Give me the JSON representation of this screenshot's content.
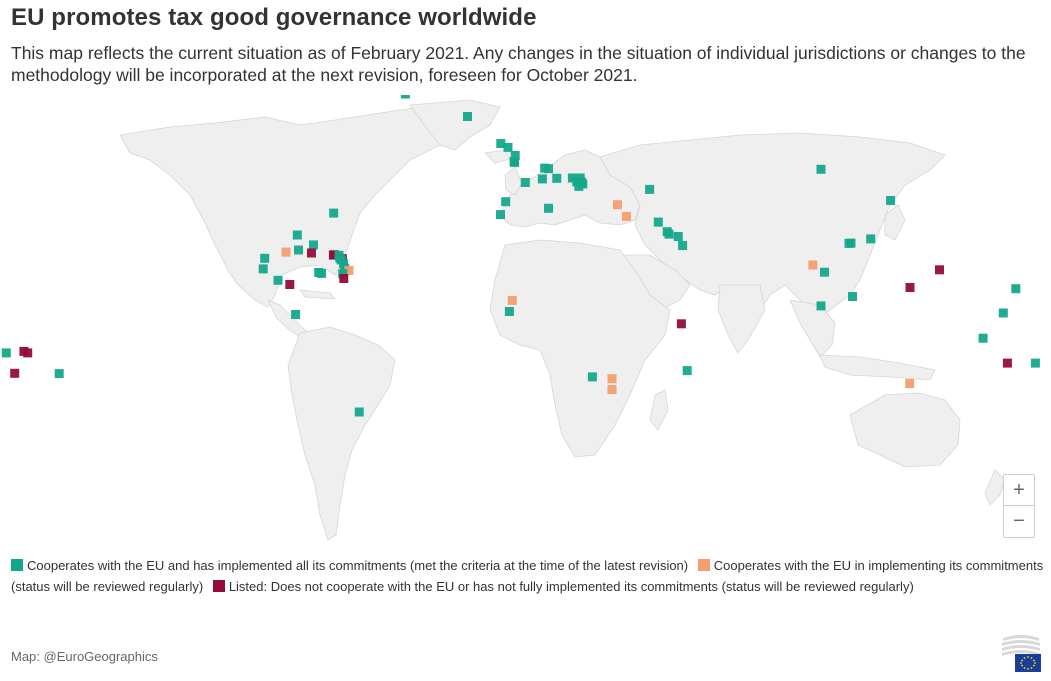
{
  "title": "EU promotes tax good governance worldwide",
  "subtitle": "This map reflects the current situation as of February 2021. Any changes in the situation of individual jurisdictions or changes to the methodology will be incorporated at the next revision, foreseen for October 2021.",
  "colors": {
    "cooperates_implemented": "#14a88a",
    "cooperates_implementing": "#f59d6e",
    "listed": "#970b3a",
    "land": "#efefef",
    "border": "#c9c9c9"
  },
  "legend": {
    "cooperates_implemented": "Cooperates with the EU and has implemented all its commitments (met the criteria at the time of the latest revision)",
    "cooperates_implementing": "Cooperates with the EU in implementing its commitments (status will be reviewed regularly)",
    "listed": "Listed: Does not cooperate with the EU or has not fully implemented its commitments (status will be reviewed regularly)"
  },
  "zoom": {
    "in": "+",
    "out": "−"
  },
  "source": "Map: @EuroGeographics",
  "markers": [
    {
      "lat": 72.0,
      "lon": -40.0,
      "status": "cooperates_implemented"
    },
    {
      "lat": 64.5,
      "lon": -18.5,
      "status": "cooperates_implemented"
    },
    {
      "lat": 55.5,
      "lon": -7.0,
      "status": "cooperates_implemented"
    },
    {
      "lat": 51.5,
      "lon": -2.0,
      "status": "cooperates_implemented"
    },
    {
      "lat": 49.5,
      "lon": -2.4,
      "status": "cooperates_implemented"
    },
    {
      "lat": 49.2,
      "lon": -2.2,
      "status": "cooperates_implemented"
    },
    {
      "lat": 54.2,
      "lon": -4.5,
      "status": "cooperates_implemented"
    },
    {
      "lat": 47.1,
      "lon": 9.5,
      "status": "cooperates_implemented"
    },
    {
      "lat": 47.3,
      "lon": 8.2,
      "status": "cooperates_implemented"
    },
    {
      "lat": 43.7,
      "lon": 7.4,
      "status": "cooperates_implemented"
    },
    {
      "lat": 42.5,
      "lon": 1.5,
      "status": "cooperates_implemented"
    },
    {
      "lat": 43.9,
      "lon": 12.4,
      "status": "cooperates_implemented"
    },
    {
      "lat": 44.0,
      "lon": 17.8,
      "status": "cooperates_implemented"
    },
    {
      "lat": 42.7,
      "lon": 19.3,
      "status": "cooperates_implemented"
    },
    {
      "lat": 42.0,
      "lon": 21.4,
      "status": "cooperates_implemented"
    },
    {
      "lat": 41.2,
      "lon": 20.0,
      "status": "cooperates_implemented"
    },
    {
      "lat": 44.0,
      "lon": 20.5,
      "status": "cooperates_implemented"
    },
    {
      "lat": 42.6,
      "lon": 20.9,
      "status": "cooperates_implemented"
    },
    {
      "lat": 40.2,
      "lon": 44.5,
      "status": "cooperates_implemented"
    },
    {
      "lat": 46.9,
      "lon": 103.8,
      "status": "cooperates_implemented"
    },
    {
      "lat": 36.1,
      "lon": -5.3,
      "status": "cooperates_implemented"
    },
    {
      "lat": 33.9,
      "lon": 9.5,
      "status": "cooperates_implemented"
    },
    {
      "lat": 31.8,
      "lon": -7.1,
      "status": "cooperates_implemented"
    },
    {
      "lat": 35.1,
      "lon": 33.4,
      "status": "cooperates_implementing"
    },
    {
      "lat": 31.2,
      "lon": 36.5,
      "status": "cooperates_implementing"
    },
    {
      "lat": 26.1,
      "lon": 50.6,
      "status": "cooperates_implemented"
    },
    {
      "lat": 25.3,
      "lon": 51.2,
      "status": "cooperates_implemented"
    },
    {
      "lat": 24.5,
      "lon": 54.4,
      "status": "cooperates_implemented"
    },
    {
      "lat": 21.5,
      "lon": 55.9,
      "status": "cooperates_implemented"
    },
    {
      "lat": 29.3,
      "lon": 47.5,
      "status": "cooperates_implemented"
    },
    {
      "lat": 36.5,
      "lon": 127.9,
      "status": "cooperates_implemented"
    },
    {
      "lat": 23.7,
      "lon": 121.0,
      "status": "cooperates_implemented"
    },
    {
      "lat": 22.3,
      "lon": 114.2,
      "status": "cooperates_implemented"
    },
    {
      "lat": 22.2,
      "lon": 113.5,
      "status": "cooperates_implemented"
    },
    {
      "lat": 15.0,
      "lon": 101.0,
      "status": "cooperates_implementing"
    },
    {
      "lat": 12.6,
      "lon": 105.0,
      "status": "cooperates_implemented"
    },
    {
      "lat": 4.5,
      "lon": 114.7,
      "status": "cooperates_implemented"
    },
    {
      "lat": 1.35,
      "lon": 103.8,
      "status": "cooperates_implemented"
    },
    {
      "lat": 3.2,
      "lon": -3.0,
      "status": "cooperates_implementing"
    },
    {
      "lat": -4.6,
      "lon": 55.5,
      "status": "listed"
    },
    {
      "lat": -20.2,
      "lon": 57.5,
      "status": "cooperates_implemented"
    },
    {
      "lat": -22.3,
      "lon": 24.7,
      "status": "cooperates_implemented"
    },
    {
      "lat": -22.9,
      "lon": 31.5,
      "status": "cooperates_implementing"
    },
    {
      "lat": -26.5,
      "lon": 31.5,
      "status": "cooperates_implementing"
    },
    {
      "lat": -24.5,
      "lon": 134.5,
      "status": "cooperates_implementing"
    },
    {
      "lat": 7.5,
      "lon": 134.6,
      "status": "listed"
    },
    {
      "lat": 13.4,
      "lon": 144.8,
      "status": "listed"
    },
    {
      "lat": 7.1,
      "lon": 171.2,
      "status": "cooperates_implemented"
    },
    {
      "lat": -1.0,
      "lon": 166.9,
      "status": "cooperates_implemented"
    },
    {
      "lat": -13.8,
      "lon": -172.0,
      "status": "listed"
    },
    {
      "lat": -14.3,
      "lon": -170.7,
      "status": "listed"
    },
    {
      "lat": -17.7,
      "lon": 168.3,
      "status": "listed"
    },
    {
      "lat": -21.1,
      "lon": -175.2,
      "status": "listed"
    },
    {
      "lat": -21.2,
      "lon": -159.8,
      "status": "cooperates_implemented"
    },
    {
      "lat": -17.7,
      "lon": 178.0,
      "status": "cooperates_implemented"
    },
    {
      "lat": -14.3,
      "lon": -178.1,
      "status": "cooperates_implemented"
    },
    {
      "lat": -9.4,
      "lon": 159.9,
      "status": "cooperates_implemented"
    },
    {
      "lat": 32.3,
      "lon": -64.8,
      "status": "cooperates_implemented"
    },
    {
      "lat": 25.0,
      "lon": -77.4,
      "status": "cooperates_implemented"
    },
    {
      "lat": 21.7,
      "lon": -71.8,
      "status": "cooperates_implemented"
    },
    {
      "lat": 19.3,
      "lon": -81.3,
      "status": "cooperates_implementing"
    },
    {
      "lat": 20.0,
      "lon": -77.0,
      "status": "cooperates_implemented"
    },
    {
      "lat": 19.0,
      "lon": -72.5,
      "status": "listed"
    },
    {
      "lat": 17.25,
      "lon": -88.7,
      "status": "cooperates_implemented"
    },
    {
      "lat": 13.7,
      "lon": -89.2,
      "status": "cooperates_implemented"
    },
    {
      "lat": 8.5,
      "lon": -80.0,
      "status": "listed"
    },
    {
      "lat": 9.9,
      "lon": -84.1,
      "status": "cooperates_implemented"
    },
    {
      "lat": 18.4,
      "lon": -64.6,
      "status": "listed"
    },
    {
      "lat": 18.3,
      "lon": -64.9,
      "status": "listed"
    },
    {
      "lat": 18.2,
      "lon": -63.0,
      "status": "cooperates_implemented"
    },
    {
      "lat": 17.1,
      "lon": -61.8,
      "status": "listed"
    },
    {
      "lat": 17.3,
      "lon": -62.7,
      "status": "cooperates_implemented"
    },
    {
      "lat": 16.7,
      "lon": -62.2,
      "status": "cooperates_implemented"
    },
    {
      "lat": 15.4,
      "lon": -61.4,
      "status": "cooperates_implemented"
    },
    {
      "lat": 13.9,
      "lon": -61.0,
      "status": "cooperates_implemented"
    },
    {
      "lat": 13.2,
      "lon": -59.5,
      "status": "cooperates_implementing"
    },
    {
      "lat": 12.1,
      "lon": -61.7,
      "status": "cooperates_implemented"
    },
    {
      "lat": 12.5,
      "lon": -70.0,
      "status": "cooperates_implemented"
    },
    {
      "lat": 12.2,
      "lon": -69.0,
      "status": "cooperates_implemented"
    },
    {
      "lat": 10.5,
      "lon": -61.3,
      "status": "listed"
    },
    {
      "lat": -1.5,
      "lon": -78.0,
      "status": "cooperates_implemented"
    },
    {
      "lat": -34.0,
      "lon": -56.0,
      "status": "cooperates_implemented"
    },
    {
      "lat": -0.5,
      "lon": -4.0,
      "status": "cooperates_implemented"
    }
  ]
}
